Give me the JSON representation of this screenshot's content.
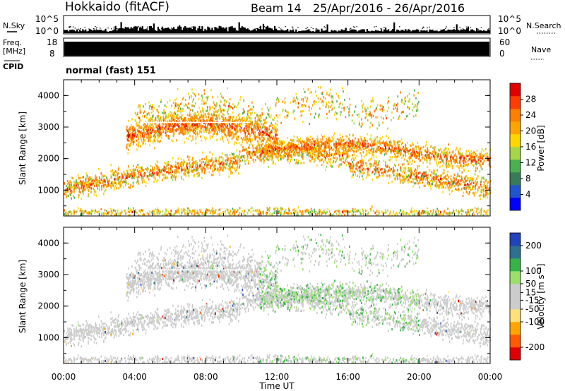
{
  "header": {
    "station": "Hokkaido (fitACF)",
    "beam": "Beam 14",
    "date_range": "25/Apr/2016 - 26/Apr/2016"
  },
  "mode_label": "normal (fast) 151",
  "colors": {
    "power_scale": [
      "#0000ff",
      "#2255cc",
      "#3a7a5a",
      "#4caf50",
      "#a6d64a",
      "#ffd700",
      "#ffa500",
      "#ff7f00",
      "#ff3d00",
      "#e00000"
    ],
    "velocity_scale": [
      "#e00000",
      "#ff5a00",
      "#ffa500",
      "#ffe07a",
      "#cccccc",
      "#cccccc",
      "#9be06b",
      "#37b34a",
      "#2f6f8f",
      "#2244bb"
    ],
    "gray_scatter": "#cccccc"
  },
  "chart_data": [
    {
      "id": "nsky_nsearch",
      "type": "line",
      "ylabel_left": "N.Sky",
      "ylabel_right": "N.Search",
      "left_ticks": [
        "10^5",
        "10^0"
      ],
      "right_ticks": [
        "10^5",
        "10^0"
      ]
    },
    {
      "id": "freq_nave",
      "type": "area",
      "ylabel_left": "Freq. [MHz]",
      "ylabel_right": "Nave",
      "left_ticks": [
        "18",
        "8"
      ],
      "right_ticks": [
        "60",
        "0"
      ]
    },
    {
      "id": "cpid",
      "type": "table",
      "label": "CPID",
      "value": "normal (fast) 151"
    },
    {
      "id": "power",
      "type": "heatmap",
      "ylabel": "Slant Range [km]",
      "y_ticks": [
        1000,
        2000,
        3000,
        4000
      ],
      "ylim": [
        180,
        4500
      ],
      "xlim": [
        0,
        24
      ],
      "colorbar_label": "Power [dB]",
      "colorbar_ticks": [
        4,
        8,
        12,
        16,
        20,
        24,
        28
      ],
      "colorbar_range": [
        0,
        32
      ]
    },
    {
      "id": "velocity",
      "type": "heatmap",
      "ylabel": "Slant Range [km]",
      "y_ticks": [
        1000,
        2000,
        3000,
        4000
      ],
      "ylim": [
        180,
        4500
      ],
      "xlim": [
        0,
        24
      ],
      "colorbar_label": "Velocity [m s⁻¹]",
      "colorbar_ticks": [
        -200,
        -100,
        -50,
        -15,
        15,
        50,
        100,
        200
      ],
      "colorbar_range": [
        -250,
        250
      ]
    }
  ],
  "x_axis": {
    "label": "Time UT",
    "ticks": [
      "00:00",
      "04:00",
      "08:00",
      "12:00",
      "16:00",
      "20:00",
      "00:00"
    ]
  }
}
